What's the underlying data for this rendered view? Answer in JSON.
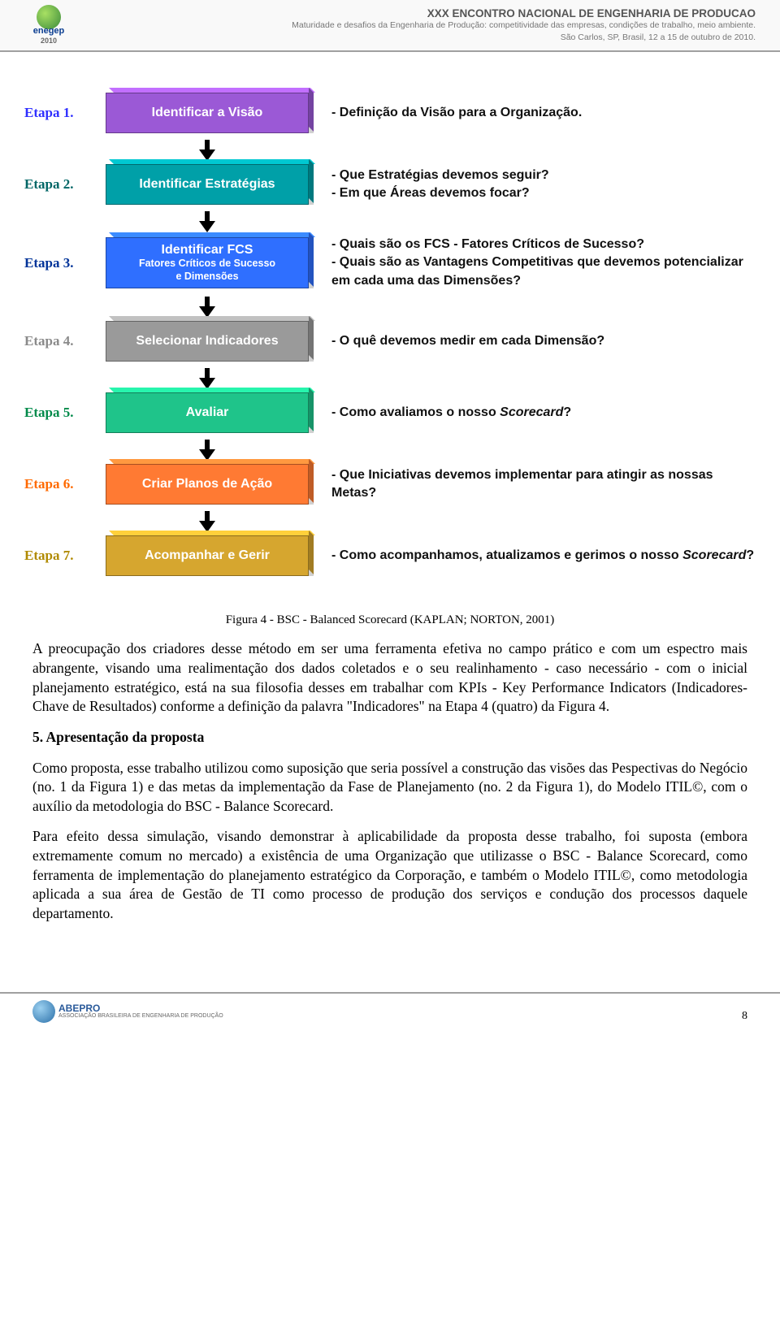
{
  "header": {
    "logo_name": "enegep",
    "logo_year": "2010",
    "title": "XXX ENCONTRO NACIONAL DE ENGENHARIA DE PRODUCAO",
    "subtitle_line1": "Maturidade e desafios da Engenharia de Produção: competitividade das empresas, condições de trabalho, meio ambiente.",
    "subtitle_line2": "São Carlos, SP, Brasil, 12 a 15 de outubro de 2010."
  },
  "diagram": {
    "type": "flowchart",
    "steps": [
      {
        "label": "Etapa 1.",
        "label_color": "#2f2fff",
        "box_title": "Identificar a Visão",
        "box_sub": "",
        "box_color": "#9b59d6",
        "desc_lines": [
          "- Definição da Visão para a Organização."
        ]
      },
      {
        "label": "Etapa 2.",
        "label_color": "#006666",
        "box_title": "Identificar Estratégias",
        "box_sub": "",
        "box_color": "#00a0a8",
        "desc_lines": [
          "- Que Estratégias devemos seguir?",
          "- Em que Áreas devemos focar?"
        ]
      },
      {
        "label": "Etapa 3.",
        "label_color": "#003399",
        "box_title": "Identificar FCS",
        "box_sub": "Fatores Críticos de Sucesso e Dimensões",
        "box_color": "#2f6fff",
        "desc_lines": [
          "- Quais são os FCS - Fatores Críticos de Sucesso?",
          "- Quais são as Vantagens Competitivas que  devemos potencializar em cada uma das Dimensões?"
        ]
      },
      {
        "label": "Etapa 4.",
        "label_color": "#8a8a8a",
        "box_title": "Selecionar Indicadores",
        "box_sub": "",
        "box_color": "#9a9a9a",
        "desc_lines": [
          "- O quê devemos medir em cada Dimensão?"
        ]
      },
      {
        "label": "Etapa 5.",
        "label_color": "#008a4a",
        "box_title": "Avaliar",
        "box_sub": "",
        "box_color": "#1fc48a",
        "desc_html": "- Como avaliamos o nosso <span class=\"italic\">Scorecard</span>?"
      },
      {
        "label": "Etapa 6.",
        "label_color": "#ff6a00",
        "box_title": "Criar Planos de Ação",
        "box_sub": "",
        "box_color": "#ff7a33",
        "desc_lines": [
          "- Que Iniciativas devemos implementar para atingir as nossas Metas?"
        ]
      },
      {
        "label": "Etapa 7.",
        "label_color": "#b08a00",
        "box_title": "Acompanhar e Gerir",
        "box_sub": "",
        "box_color": "#d6a62f",
        "desc_html": "- Como acompanhamos, atualizamos  e gerimos o nosso <span class=\"italic\">Scorecard</span>?"
      }
    ]
  },
  "caption": "Figura 4 - BSC - Balanced Scorecard (KAPLAN; NORTON, 2001)",
  "paragraphs": {
    "p1": "A preocupação dos criadores desse método em ser uma ferramenta efetiva no campo prático e com um espectro mais abrangente, visando uma realimentação dos dados coletados e o seu realinhamento - caso necessário - com o inicial planejamento estratégico, está na sua filosofia desses em trabalhar com KPIs - Key Performance Indicators (Indicadores-Chave de Resultados) conforme a definição da palavra \"Indicadores\" na Etapa 4 (quatro) da Figura 4.",
    "section_heading": "5. Apresentação da proposta",
    "p2": "Como proposta, esse trabalho utilizou como suposição que seria possível a construção das visões das Pespectivas do Negócio (no. 1 da Figura 1) e das metas da implementação da Fase de Planejamento (no. 2 da Figura 1), do Modelo ITIL©, com o auxílio da metodologia do BSC - Balance Scorecard.",
    "p3": "Para efeito dessa simulação, visando demonstrar à aplicabilidade da proposta desse trabalho, foi suposta (embora extremamente comum no mercado) a existência de uma Organização que utilizasse o BSC - Balance Scorecard, como ferramenta de implementação do planejamento estratégico da Corporação, e também o Modelo ITIL©, como metodologia aplicada a sua área de Gestão de TI como processo de produção dos serviços e condução dos processos daquele departamento."
  },
  "footer": {
    "logo_name": "ABEPRO",
    "logo_sub": "ASSOCIAÇÃO BRASILEIRA DE ENGENHARIA DE PRODUÇÃO",
    "page_number": "8"
  }
}
